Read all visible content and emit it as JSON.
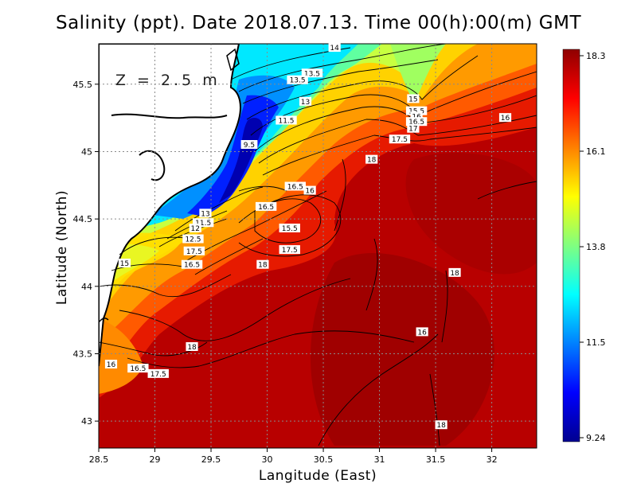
{
  "title": "Salinity (ppt). Date 2018.07.13. Time 00(h):00(m) GMT",
  "depth_label": "Z = 2.5 m",
  "x_axis": {
    "label": "Langitude (East)",
    "range": [
      28.5,
      32.4
    ],
    "ticks": [
      "28.5",
      "29",
      "29.5",
      "30",
      "30.5",
      "31",
      "31.5",
      "32"
    ]
  },
  "y_axis": {
    "label": "Latitude (North)",
    "range": [
      42.8,
      45.8
    ],
    "ticks": [
      "43",
      "43.5",
      "44",
      "44.5",
      "45",
      "45.5"
    ]
  },
  "colorbar": {
    "max_label": "18.3",
    "min_label": "9.24",
    "tick_labels": [
      "18.3",
      "16.1",
      "13.8",
      "11.5",
      "9.24"
    ],
    "min": 9.24,
    "max": 18.3,
    "colors": [
      "#00008f",
      "#0000ff",
      "#0080ff",
      "#00ffff",
      "#80ff80",
      "#ffff00",
      "#ff8000",
      "#ff0000",
      "#8f0000"
    ]
  },
  "grid": "dotted",
  "contour_labels": [
    {
      "text": "14",
      "lon": 30.6,
      "lat": 45.77
    },
    {
      "text": "13.5",
      "lon": 30.4,
      "lat": 45.58
    },
    {
      "text": "13.5",
      "lon": 30.27,
      "lat": 45.53
    },
    {
      "text": "13",
      "lon": 30.34,
      "lat": 45.37
    },
    {
      "text": "11.5",
      "lon": 30.17,
      "lat": 45.23
    },
    {
      "text": "9.5",
      "lon": 29.84,
      "lat": 45.05
    },
    {
      "text": "15",
      "lon": 31.3,
      "lat": 45.39
    },
    {
      "text": "15.5",
      "lon": 31.33,
      "lat": 45.3
    },
    {
      "text": "16",
      "lon": 31.33,
      "lat": 45.26
    },
    {
      "text": "16.5",
      "lon": 31.33,
      "lat": 45.22
    },
    {
      "text": "17",
      "lon": 31.3,
      "lat": 45.17
    },
    {
      "text": "17.5",
      "lon": 31.18,
      "lat": 45.09
    },
    {
      "text": "16",
      "lon": 32.12,
      "lat": 45.25
    },
    {
      "text": "18",
      "lon": 30.93,
      "lat": 44.94
    },
    {
      "text": "16.5",
      "lon": 30.25,
      "lat": 44.74
    },
    {
      "text": "16",
      "lon": 30.38,
      "lat": 44.71
    },
    {
      "text": "16.5",
      "lon": 29.99,
      "lat": 44.59
    },
    {
      "text": "15.5",
      "lon": 30.2,
      "lat": 44.43
    },
    {
      "text": "17.5",
      "lon": 30.2,
      "lat": 44.27
    },
    {
      "text": "18",
      "lon": 29.96,
      "lat": 44.16
    },
    {
      "text": "13",
      "lon": 29.45,
      "lat": 44.54
    },
    {
      "text": "11.5",
      "lon": 29.43,
      "lat": 44.47
    },
    {
      "text": "12",
      "lon": 29.36,
      "lat": 44.43
    },
    {
      "text": "12.5",
      "lon": 29.34,
      "lat": 44.35
    },
    {
      "text": "17.5",
      "lon": 29.35,
      "lat": 44.26
    },
    {
      "text": "16.5",
      "lon": 29.33,
      "lat": 44.16
    },
    {
      "text": "15",
      "lon": 28.73,
      "lat": 44.17
    },
    {
      "text": "18",
      "lon": 31.67,
      "lat": 44.1
    },
    {
      "text": "16",
      "lon": 31.38,
      "lat": 43.66
    },
    {
      "text": "18",
      "lon": 29.33,
      "lat": 43.55
    },
    {
      "text": "16",
      "lon": 28.61,
      "lat": 43.42
    },
    {
      "text": "16.5",
      "lon": 28.85,
      "lat": 43.39
    },
    {
      "text": "17.5",
      "lon": 29.03,
      "lat": 43.35
    },
    {
      "text": "18",
      "lon": 31.55,
      "lat": 42.97
    }
  ]
}
